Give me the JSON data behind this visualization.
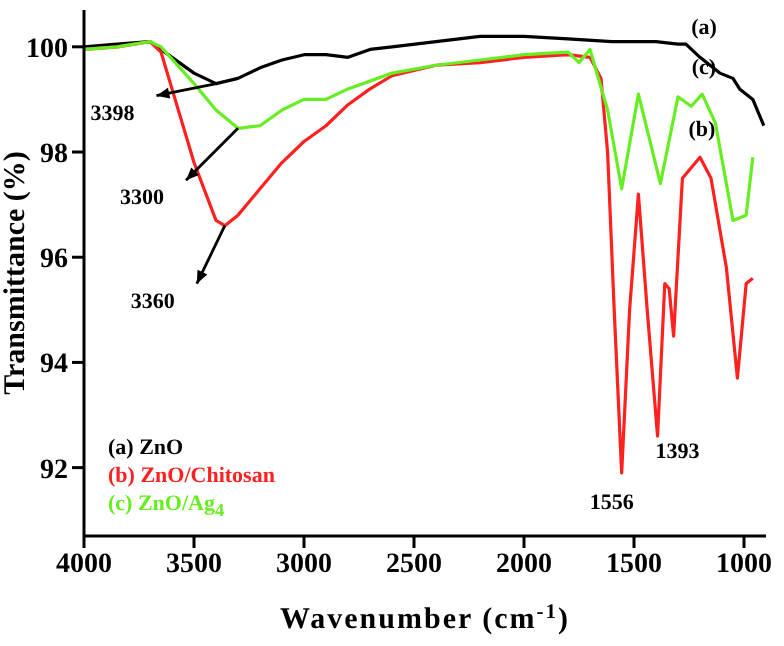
{
  "chart_data": {
    "type": "line",
    "xlabel": "Wavenumber (cm$^{-1}$)",
    "ylabel": "Transmittance (%)",
    "xlim": [
      4000,
      900
    ],
    "ylim": [
      90.7,
      100.7
    ],
    "xticks": [
      4000,
      3500,
      3000,
      2500,
      2000,
      1500,
      1000
    ],
    "yticks": [
      92,
      94,
      96,
      98,
      100
    ],
    "grid": false,
    "legend": "bottom left",
    "marker": "none",
    "line_style": "solid",
    "series": [
      {
        "name": "(a) ZnO",
        "color": "#000000",
        "x": [
          4000,
          3850,
          3700,
          3600,
          3500,
          3400,
          3300,
          3200,
          3100,
          3000,
          2900,
          2800,
          2700,
          2600,
          2400,
          2200,
          2000,
          1800,
          1600,
          1400,
          1300,
          1264,
          1200,
          1110,
          1050,
          1020,
          960,
          910
        ],
        "values": [
          100,
          100.05,
          100.1,
          99.8,
          99.5,
          99.3,
          99.4,
          99.6,
          99.75,
          99.85,
          99.85,
          99.8,
          99.95,
          100,
          100.1,
          100.2,
          100.2,
          100.15,
          100.1,
          100.1,
          100.05,
          100.05,
          99.8,
          99.5,
          99.4,
          99.2,
          99,
          98.5
        ]
      },
      {
        "name": "(b) ZnO/Chitosan",
        "color": "#ff2020",
        "x": [
          4000,
          3850,
          3700,
          3650,
          3600,
          3500,
          3400,
          3360,
          3300,
          3200,
          3100,
          3000,
          2900,
          2800,
          2700,
          2600,
          2500,
          2400,
          2200,
          2000,
          1800,
          1700,
          1650,
          1620,
          1590,
          1556,
          1520,
          1480,
          1440,
          1393,
          1360,
          1340,
          1320,
          1280,
          1200,
          1150,
          1080,
          1030,
          990,
          960
        ],
        "values": [
          99.95,
          100,
          100.1,
          99.9,
          99.2,
          97.8,
          96.7,
          96.6,
          96.8,
          97.3,
          97.8,
          98.2,
          98.5,
          98.9,
          99.2,
          99.45,
          99.55,
          99.65,
          99.7,
          99.8,
          99.85,
          99.8,
          99.4,
          98,
          95,
          91.9,
          95,
          97.2,
          95,
          92.6,
          95.5,
          95.4,
          94.5,
          97.5,
          97.9,
          97.5,
          95.8,
          93.7,
          95.5,
          95.6
        ]
      },
      {
        "name": "(c) ZnO/Ag$_{4}$",
        "color": "#66ee22",
        "x": [
          4000,
          3850,
          3700,
          3650,
          3500,
          3400,
          3300,
          3200,
          3100,
          3000,
          2900,
          2800,
          2600,
          2400,
          2200,
          2000,
          1800,
          1750,
          1700,
          1620,
          1556,
          1480,
          1380,
          1300,
          1240,
          1190,
          1130,
          1050,
          990,
          960
        ],
        "values": [
          99.95,
          100,
          100.1,
          100,
          99.3,
          98.8,
          98.45,
          98.5,
          98.8,
          99,
          99,
          99.2,
          99.5,
          99.65,
          99.75,
          99.85,
          99.9,
          99.7,
          99.95,
          98.8,
          97.3,
          99.1,
          97.4,
          99.05,
          98.87,
          99.1,
          98.55,
          96.7,
          96.8,
          97.9
        ]
      }
    ],
    "annotations": [
      {
        "text": "3398",
        "x": 3398,
        "y": 99.3
      },
      {
        "text": "3300",
        "x": 3300,
        "y": 98.45
      },
      {
        "text": "3360",
        "x": 3360,
        "y": 96.6
      },
      {
        "text": "1556",
        "x": 1556,
        "y": 91.9
      },
      {
        "text": "1393",
        "x": 1393,
        "y": 92.6
      },
      "(a)",
      "(c)",
      "(b)"
    ]
  }
}
